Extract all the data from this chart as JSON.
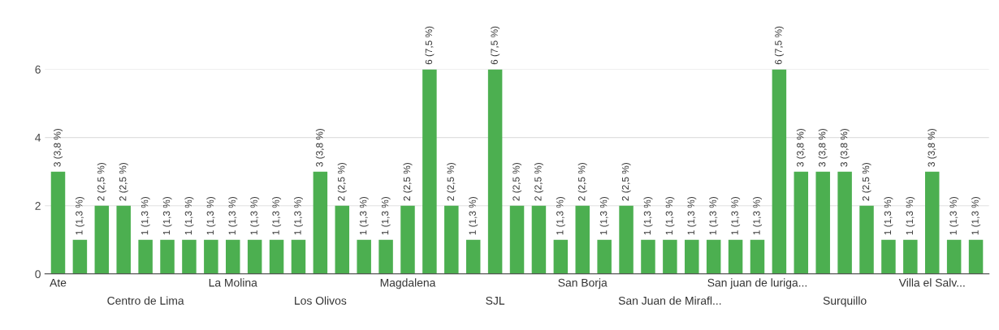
{
  "chart_data": {
    "type": "bar",
    "categories": [
      "Ate",
      null,
      null,
      null,
      "Centro de Lima",
      null,
      null,
      null,
      "La Molina",
      null,
      null,
      null,
      "Los Olivos",
      null,
      null,
      null,
      "Magdalena",
      null,
      null,
      null,
      "SJL",
      null,
      null,
      null,
      "San Borja",
      null,
      null,
      null,
      "San Juan de Mirafl...",
      null,
      null,
      null,
      "San juan de luriga...",
      null,
      null,
      null,
      "Surquillo",
      null,
      null,
      null,
      "Villa el Salv...",
      null,
      null
    ],
    "values": [
      3,
      1,
      2,
      2,
      1,
      1,
      1,
      1,
      1,
      1,
      1,
      1,
      3,
      2,
      1,
      1,
      2,
      6,
      2,
      1,
      6,
      2,
      2,
      1,
      2,
      1,
      2,
      1,
      1,
      1,
      1,
      1,
      1,
      6,
      3,
      3,
      3,
      2,
      1,
      1,
      3,
      1,
      1
    ],
    "value_labels": [
      "3 (3,8 %)",
      "1 (1,3 %)",
      "2 (2,5 %)",
      "2 (2,5 %)",
      "1 (1,3 %)",
      "1 (1,3 %)",
      "1 (1,3 %)",
      "1 (1,3 %)",
      "1 (1,3 %)",
      "1 (1,3 %)",
      "1 (1,3 %)",
      "1 (1,3 %)",
      "3 (3,8 %)",
      "2 (2,5 %)",
      "1 (1,3 %)",
      "1 (1,3 %)",
      "2 (2,5 %)",
      "6 (7,5 %)",
      "2 (2,5 %)",
      "1 (1,3 %)",
      "6 (7,5 %)",
      "2 (2,5 %)",
      "2 (2,5 %)",
      "1 (1,3 %)",
      "2 (2,5 %)",
      "1 (1,3 %)",
      "2 (2,5 %)",
      "1 (1,3 %)",
      "1 (1,3 %)",
      "1 (1,3 %)",
      "1 (1,3 %)",
      "1 (1,3 %)",
      "1 (1,3 %)",
      "6 (7,5 %)",
      "3 (3,8 %)",
      "3 (3,8 %)",
      "3 (3,8 %)",
      "2 (2,5 %)",
      "1 (1,3 %)",
      "1 (1,3 %)",
      "3 (3,8 %)",
      "1 (1,3 %)",
      "1 (1,3 %)"
    ],
    "color": "#4caf50",
    "ylim": [
      0,
      6
    ],
    "yticks": [
      0,
      2,
      4,
      6
    ],
    "grid": "y",
    "legend": false
  }
}
